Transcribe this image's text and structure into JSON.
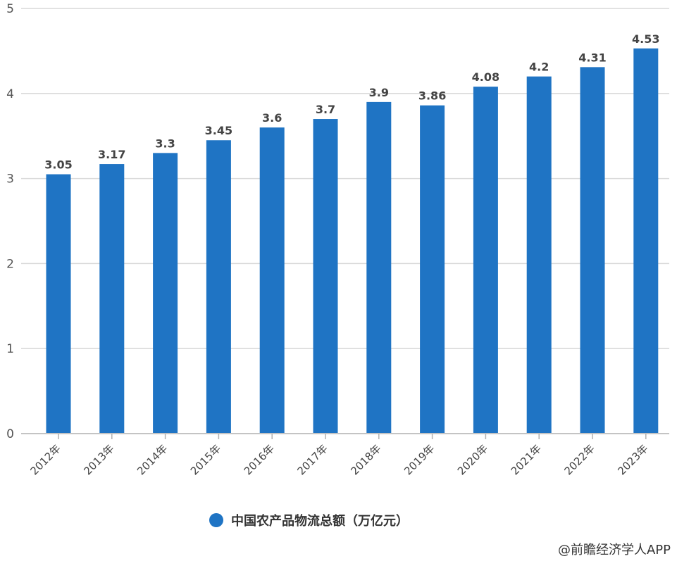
{
  "chart_data": {
    "type": "bar",
    "title": "",
    "xlabel": "",
    "ylabel": "",
    "ylim": [
      0,
      5
    ],
    "yticks": [
      0,
      1,
      2,
      3,
      4,
      5
    ],
    "grid": true,
    "legend_position": "bottom",
    "categories": [
      "2012年",
      "2013年",
      "2014年",
      "2015年",
      "2016年",
      "2017年",
      "2018年",
      "2019年",
      "2020年",
      "2021年",
      "2022年",
      "2023年"
    ],
    "series": [
      {
        "name": "中国农产品物流总额（万亿元）",
        "color": "#1f74c4",
        "values": [
          3.05,
          3.17,
          3.3,
          3.45,
          3.6,
          3.7,
          3.9,
          3.86,
          4.08,
          4.2,
          4.31,
          4.53
        ],
        "labels": [
          "3.05",
          "3.17",
          "3.3",
          "3.45",
          "3.6",
          "3.7",
          "3.9",
          "3.86",
          "4.08",
          "4.2",
          "4.31",
          "4.53"
        ]
      }
    ]
  },
  "legend": {
    "label": "中国农产品物流总额（万亿元）"
  },
  "source": "@前瞻经济学人APP"
}
